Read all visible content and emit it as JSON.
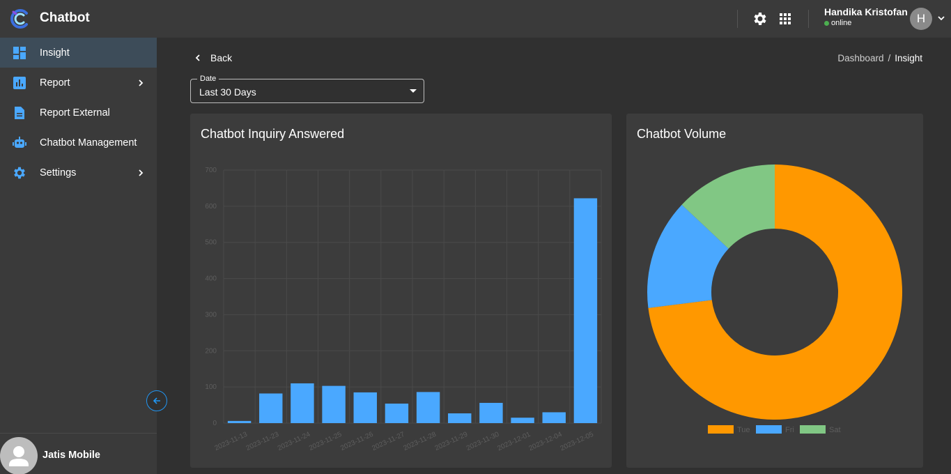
{
  "app": {
    "title": "Chatbot"
  },
  "user": {
    "name": "Handika Kristofan",
    "status": "online",
    "initial": "H"
  },
  "sidebar": {
    "items": [
      {
        "label": "Insight",
        "active": true
      },
      {
        "label": "Report"
      },
      {
        "label": "Report External"
      },
      {
        "label": "Chatbot Management"
      },
      {
        "label": "Settings"
      }
    ],
    "footer_name": "Jatis Mobile"
  },
  "main": {
    "back_label": "Back",
    "breadcrumb": {
      "root": "Dashboard",
      "sep": "/",
      "current": "Insight"
    },
    "date_filter": {
      "label": "Date",
      "value": "Last 30 Days"
    }
  },
  "colors": {
    "accent": "#2196f3",
    "bar": "#4aa8ff",
    "tue": "#ff9800",
    "fri": "#4aa8ff",
    "sat": "#81c784"
  },
  "chart_data": [
    {
      "type": "bar",
      "title": "Chatbot Inquiry Answered",
      "categories": [
        "2023-11-13",
        "2023-11-23",
        "2023-11-24",
        "2023-11-25",
        "2023-11-26",
        "2023-11-27",
        "2023-11-28",
        "2023-11-29",
        "2023-11-30",
        "2023-12-01",
        "2023-12-04",
        "2023-12-05"
      ],
      "values": [
        6,
        82,
        110,
        103,
        85,
        54,
        86,
        27,
        56,
        15,
        30,
        622
      ],
      "ylim": [
        0,
        700
      ],
      "yticks": [
        "0",
        "100",
        "200",
        "300",
        "400",
        "500",
        "600",
        "700"
      ],
      "grid": true
    },
    {
      "type": "pie",
      "title": "Chatbot Volume",
      "labels": [
        "Tue",
        "Fri",
        "Sat"
      ],
      "values": [
        73,
        14,
        13
      ],
      "legend": "bottom"
    }
  ]
}
